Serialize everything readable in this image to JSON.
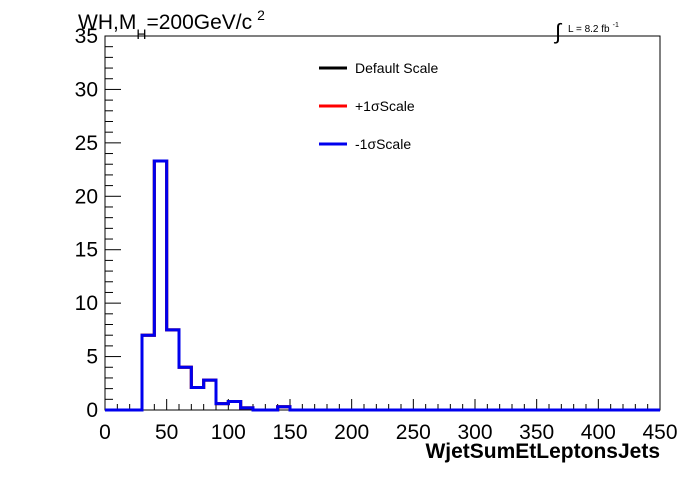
{
  "chart_data": {
    "type": "line",
    "title": "WH,M_H=200GeV/c^2",
    "title_parts": {
      "main": "WH,M",
      "sub": "H",
      "rest": "=200GeV/c",
      "sup": "2"
    },
    "luminosity": {
      "symbol": "∫",
      "text": "L = 8.2 fb",
      "sup": "-1"
    },
    "xlabel": "WjetSumEtLeptonsJets",
    "ylabel": "",
    "xlim": [
      0,
      450
    ],
    "ylim": [
      0,
      35
    ],
    "x_ticks": [
      0,
      50,
      100,
      150,
      200,
      250,
      300,
      350,
      400,
      450
    ],
    "y_ticks": [
      0,
      5,
      10,
      15,
      20,
      25,
      30,
      35
    ],
    "x_tick_labels": [
      "0",
      "50",
      "100",
      "150",
      "200",
      "250",
      "300",
      "350",
      "400",
      "450"
    ],
    "y_tick_labels": [
      "0",
      "5",
      "10",
      "15",
      "20",
      "25",
      "30",
      "35"
    ],
    "grid": false,
    "legend_position": "top-center",
    "bin_edges": [
      0,
      10,
      20,
      30,
      40,
      50,
      60,
      70,
      80,
      90,
      100,
      110,
      120,
      130,
      140,
      150,
      160,
      170,
      180,
      190,
      200,
      210,
      220,
      230,
      240,
      250,
      260,
      270,
      280,
      290,
      300,
      310,
      320,
      330,
      340,
      350,
      360,
      370,
      380,
      390,
      400,
      410,
      420,
      430,
      440,
      450
    ],
    "series": [
      {
        "name": "Default Scale",
        "color": "#000000",
        "values": [
          0,
          0,
          0,
          7.0,
          23.3,
          7.5,
          4.0,
          2.1,
          2.8,
          0.6,
          0.8,
          0.2,
          0,
          0,
          0.3,
          0,
          0,
          0,
          0,
          0,
          0,
          0,
          0,
          0,
          0,
          0,
          0,
          0,
          0,
          0,
          0,
          0,
          0,
          0,
          0,
          0,
          0,
          0,
          0,
          0,
          0,
          0,
          0,
          0,
          0
        ]
      },
      {
        "name": "+1σScale",
        "color": "#ff0000",
        "values": [
          0,
          0,
          0,
          7.0,
          23.3,
          7.5,
          4.0,
          2.1,
          2.8,
          0.6,
          0.8,
          0.2,
          0,
          0,
          0.3,
          0,
          0,
          0,
          0,
          0,
          0,
          0,
          0,
          0,
          0,
          0,
          0,
          0,
          0,
          0,
          0,
          0,
          0,
          0,
          0,
          0,
          0,
          0,
          0,
          0,
          0,
          0,
          0,
          0,
          0
        ]
      },
      {
        "name": "-1σScale",
        "color": "#0000ee",
        "values": [
          0,
          0,
          0,
          7.0,
          23.3,
          7.5,
          4.0,
          2.1,
          2.8,
          0.6,
          0.8,
          0.2,
          0,
          0,
          0.3,
          0,
          0,
          0,
          0,
          0,
          0,
          0,
          0,
          0,
          0,
          0,
          0,
          0,
          0,
          0,
          0,
          0,
          0,
          0,
          0,
          0,
          0,
          0,
          0,
          0,
          0,
          0,
          0,
          0,
          0
        ]
      }
    ]
  }
}
